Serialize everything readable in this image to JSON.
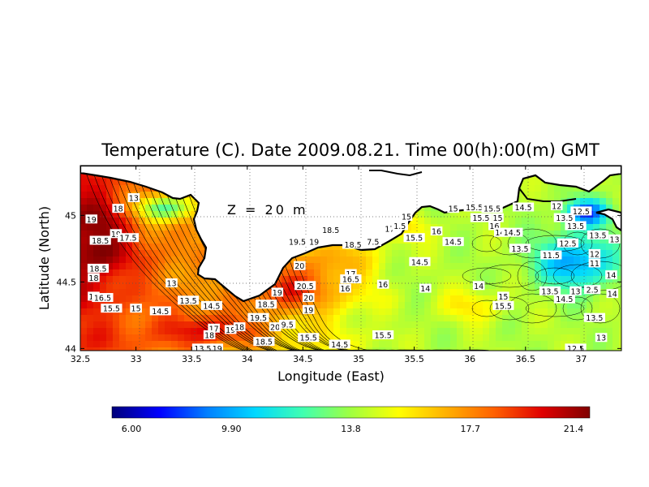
{
  "chart_data": {
    "type": "heatmap",
    "title": "Temperature (C). Date 2009.08.21. Time 00(h):00(m) GMT",
    "annotation": "Z = 20 m",
    "xlabel": "Longitude (East)",
    "ylabel": "Latitude (North)",
    "xlim": [
      32.5,
      37.3
    ],
    "ylim": [
      43.98,
      45.45
    ],
    "x_ticks": [
      "32.5",
      "33",
      "33.5",
      "34",
      "34.5",
      "35",
      "35.5",
      "36",
      "36.5",
      "37"
    ],
    "y_ticks": [
      "44",
      "44.5",
      "45"
    ],
    "grid": true,
    "colorbar": {
      "min": 6.0,
      "max": 21.4,
      "tick_labels": [
        "6.00",
        "9.90",
        "13.8",
        "17.7",
        "21.4"
      ],
      "colors": [
        "#00007a",
        "#0000ff",
        "#0080ff",
        "#00d8ff",
        "#40ffb0",
        "#a0ff40",
        "#ffff00",
        "#ffb000",
        "#ff6000",
        "#e00000",
        "#800000"
      ]
    },
    "contour_labels": [
      {
        "text": "19",
        "x": 32.6,
        "y": 44.97
      },
      {
        "text": "18",
        "x": 32.84,
        "y": 45.05
      },
      {
        "text": "13",
        "x": 32.98,
        "y": 45.13
      },
      {
        "text": "19",
        "x": 32.82,
        "y": 44.86
      },
      {
        "text": "17.5",
        "x": 32.93,
        "y": 44.83
      },
      {
        "text": "18.5",
        "x": 32.68,
        "y": 44.81
      },
      {
        "text": "18.5",
        "x": 32.66,
        "y": 44.6
      },
      {
        "text": "18",
        "x": 32.62,
        "y": 44.53
      },
      {
        "text": "17",
        "x": 32.62,
        "y": 44.39
      },
      {
        "text": "16.5",
        "x": 32.7,
        "y": 44.38
      },
      {
        "text": "15.5",
        "x": 32.78,
        "y": 44.3
      },
      {
        "text": "15",
        "x": 33.0,
        "y": 44.3
      },
      {
        "text": "14.5",
        "x": 33.22,
        "y": 44.28
      },
      {
        "text": "13.5",
        "x": 33.47,
        "y": 44.36
      },
      {
        "text": "13",
        "x": 33.32,
        "y": 44.49
      },
      {
        "text": "14.5",
        "x": 33.68,
        "y": 44.32
      },
      {
        "text": "17",
        "x": 33.7,
        "y": 44.15
      },
      {
        "text": "18",
        "x": 33.66,
        "y": 44.1
      },
      {
        "text": "19",
        "x": 33.85,
        "y": 44.14
      },
      {
        "text": "18",
        "x": 33.93,
        "y": 44.16
      },
      {
        "text": "13.5",
        "x": 33.6,
        "y": 44.0
      },
      {
        "text": "19",
        "x": 33.73,
        "y": 44.0
      },
      {
        "text": "19",
        "x": 34.27,
        "y": 44.42
      },
      {
        "text": "18.5",
        "x": 34.17,
        "y": 44.33
      },
      {
        "text": "19.5",
        "x": 34.1,
        "y": 44.23
      },
      {
        "text": "20",
        "x": 34.25,
        "y": 44.16
      },
      {
        "text": "9.5",
        "x": 34.36,
        "y": 44.18
      },
      {
        "text": "18.5",
        "x": 34.15,
        "y": 44.05
      },
      {
        "text": "15.5",
        "x": 34.55,
        "y": 44.08
      },
      {
        "text": "14.5",
        "x": 34.83,
        "y": 44.03
      },
      {
        "text": "20",
        "x": 34.47,
        "y": 44.62
      },
      {
        "text": "20.5",
        "x": 34.52,
        "y": 44.47
      },
      {
        "text": "20",
        "x": 34.55,
        "y": 44.38
      },
      {
        "text": "19",
        "x": 34.55,
        "y": 44.29
      },
      {
        "text": "19.5",
        "x": 34.45,
        "y": 44.8
      },
      {
        "text": "19",
        "x": 34.6,
        "y": 44.8
      },
      {
        "text": "18.5",
        "x": 34.75,
        "y": 44.89
      },
      {
        "text": "18.5",
        "x": 34.95,
        "y": 44.78
      },
      {
        "text": "7.5",
        "x": 35.13,
        "y": 44.8
      },
      {
        "text": "17",
        "x": 34.93,
        "y": 44.56
      },
      {
        "text": "16.5",
        "x": 34.93,
        "y": 44.52
      },
      {
        "text": "16",
        "x": 34.88,
        "y": 44.45
      },
      {
        "text": "16",
        "x": 35.22,
        "y": 44.48
      },
      {
        "text": "15.5",
        "x": 35.22,
        "y": 44.1
      },
      {
        "text": "17",
        "x": 35.28,
        "y": 44.9
      },
      {
        "text": "1.5",
        "x": 35.37,
        "y": 44.92
      },
      {
        "text": "15",
        "x": 35.43,
        "y": 44.99
      },
      {
        "text": "15.5",
        "x": 35.5,
        "y": 44.83
      },
      {
        "text": "16",
        "x": 35.7,
        "y": 44.88
      },
      {
        "text": "14.5",
        "x": 35.85,
        "y": 44.8
      },
      {
        "text": "14.5",
        "x": 35.55,
        "y": 44.65
      },
      {
        "text": "14",
        "x": 35.6,
        "y": 44.45
      },
      {
        "text": "15",
        "x": 35.85,
        "y": 45.05
      },
      {
        "text": "15.5",
        "x": 36.04,
        "y": 45.06
      },
      {
        "text": "15.5",
        "x": 36.2,
        "y": 45.05
      },
      {
        "text": "14.5",
        "x": 36.48,
        "y": 45.06
      },
      {
        "text": "15.5",
        "x": 36.1,
        "y": 44.98
      },
      {
        "text": "15",
        "x": 36.25,
        "y": 44.98
      },
      {
        "text": "16",
        "x": 36.22,
        "y": 44.92
      },
      {
        "text": "14",
        "x": 36.27,
        "y": 44.87
      },
      {
        "text": "14.5",
        "x": 36.38,
        "y": 44.87
      },
      {
        "text": "13.5",
        "x": 36.45,
        "y": 44.75
      },
      {
        "text": "14",
        "x": 36.08,
        "y": 44.47
      },
      {
        "text": "15",
        "x": 36.3,
        "y": 44.39
      },
      {
        "text": "15.5",
        "x": 36.3,
        "y": 44.32
      },
      {
        "text": "13.5",
        "x": 36.85,
        "y": 44.98
      },
      {
        "text": "12",
        "x": 36.78,
        "y": 45.07
      },
      {
        "text": "12.5",
        "x": 37.0,
        "y": 45.03
      },
      {
        "text": "13.5",
        "x": 36.95,
        "y": 44.92
      },
      {
        "text": "13.5",
        "x": 37.15,
        "y": 44.85
      },
      {
        "text": "13",
        "x": 37.3,
        "y": 44.82
      },
      {
        "text": "12.5",
        "x": 36.88,
        "y": 44.79
      },
      {
        "text": "11.5",
        "x": 36.73,
        "y": 44.7
      },
      {
        "text": "12",
        "x": 37.12,
        "y": 44.71
      },
      {
        "text": "11",
        "x": 37.12,
        "y": 44.64
      },
      {
        "text": "14",
        "x": 37.27,
        "y": 44.55
      },
      {
        "text": "13.5",
        "x": 36.72,
        "y": 44.43
      },
      {
        "text": "14.5",
        "x": 36.85,
        "y": 44.37
      },
      {
        "text": "13",
        "x": 36.95,
        "y": 44.43
      },
      {
        "text": "2.5",
        "x": 37.1,
        "y": 44.44
      },
      {
        "text": "14",
        "x": 37.28,
        "y": 44.41
      },
      {
        "text": "13.5",
        "x": 37.12,
        "y": 44.23
      },
      {
        "text": "13",
        "x": 37.18,
        "y": 44.08
      },
      {
        "text": "12.5",
        "x": 36.95,
        "y": 44.0
      }
    ]
  }
}
